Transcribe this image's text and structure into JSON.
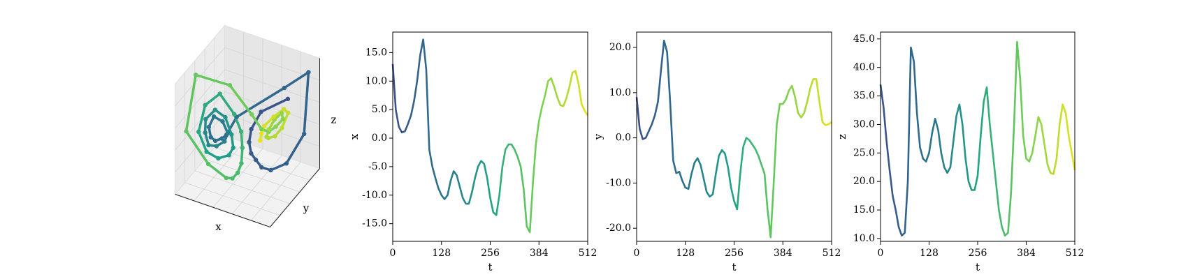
{
  "chart_data": [
    {
      "type": "line3d",
      "xlabel": "x",
      "ylabel": "y",
      "zlabel": "z",
      "colormap": [
        "#3b528b",
        "#2c728e",
        "#20a386",
        "#75d054",
        "#e7e419"
      ]
    },
    {
      "type": "line",
      "xlabel": "t",
      "ylabel": "x",
      "colormap": [
        "#3b528b",
        "#2c728e",
        "#20a386",
        "#75d054",
        "#e7e419"
      ],
      "x": [
        0,
        8,
        16,
        24,
        32,
        40,
        48,
        56,
        64,
        72,
        80,
        88,
        96,
        104,
        112,
        120,
        128,
        136,
        144,
        152,
        160,
        168,
        176,
        184,
        192,
        200,
        208,
        216,
        224,
        232,
        240,
        248,
        256,
        264,
        272,
        280,
        288,
        296,
        304,
        312,
        320,
        328,
        336,
        344,
        352,
        360,
        368,
        376,
        384,
        392,
        400,
        408,
        416,
        424,
        432,
        440,
        448,
        456,
        464,
        472,
        480,
        488,
        496,
        504,
        512
      ],
      "values": [
        13,
        5,
        2,
        1,
        1.2,
        2.5,
        4,
        6.5,
        10,
        14.5,
        17.3,
        12,
        -2,
        -5,
        -7,
        -8.8,
        -10,
        -10.7,
        -10,
        -7.5,
        -5.8,
        -6.5,
        -8.5,
        -10.5,
        -11.5,
        -11.5,
        -9.5,
        -7,
        -5,
        -4,
        -4.5,
        -7,
        -10.5,
        -13,
        -13.5,
        -10,
        -5,
        -2,
        -1.1,
        -1.1,
        -2,
        -3.3,
        -5,
        -9,
        -15.5,
        -16.5,
        -8,
        -1,
        3,
        5.5,
        7.5,
        10,
        10.5,
        9,
        7.2,
        5.8,
        5.6,
        7,
        9,
        11.5,
        11.8,
        9.5,
        6,
        4.8,
        4
      ],
      "xlim": [
        0,
        512
      ],
      "xticks": [
        0,
        128,
        256,
        384,
        512
      ],
      "ylim": [
        -18.1,
        18.6
      ],
      "yticks": [
        {
          "value": -15,
          "label": "-15.0"
        },
        {
          "value": -10,
          "label": "-10.0"
        },
        {
          "value": -5,
          "label": "-5.0"
        },
        {
          "value": 0,
          "label": "0.0"
        },
        {
          "value": 5,
          "label": "5.0"
        },
        {
          "value": 10,
          "label": "10.0"
        },
        {
          "value": 15,
          "label": "15.0"
        }
      ]
    },
    {
      "type": "line",
      "xlabel": "t",
      "ylabel": "y",
      "colormap": [
        "#3b528b",
        "#2c728e",
        "#20a386",
        "#75d054",
        "#e7e419"
      ],
      "x": [
        0,
        8,
        16,
        24,
        32,
        40,
        48,
        56,
        64,
        72,
        80,
        88,
        96,
        104,
        112,
        120,
        128,
        136,
        144,
        152,
        160,
        168,
        176,
        184,
        192,
        200,
        208,
        216,
        224,
        232,
        240,
        248,
        256,
        264,
        272,
        280,
        288,
        296,
        304,
        312,
        320,
        328,
        336,
        344,
        352,
        360,
        368,
        376,
        384,
        392,
        400,
        408,
        416,
        424,
        432,
        440,
        448,
        456,
        464,
        472,
        480,
        488,
        496,
        504,
        512
      ],
      "values": [
        9,
        2,
        -0.3,
        0,
        1.5,
        3,
        5,
        8,
        15,
        21.5,
        19,
        8,
        -5,
        -7.8,
        -7.5,
        -9.5,
        -11,
        -11.3,
        -8,
        -5.5,
        -4.5,
        -6,
        -9,
        -12,
        -13,
        -12.5,
        -8,
        -4,
        -2.7,
        -3.5,
        -6.5,
        -11,
        -14,
        -15.8,
        -8,
        -2,
        0,
        -0.5,
        -1.5,
        -2.5,
        -4,
        -6,
        -8,
        -16,
        -22,
        -10,
        3,
        7.5,
        7.5,
        8.5,
        10.5,
        11.5,
        9,
        5.5,
        4.5,
        5.5,
        8,
        11,
        13,
        13,
        8,
        3.5,
        2.8,
        3,
        3.5
      ],
      "xlim": [
        0,
        512
      ],
      "xticks": [
        0,
        128,
        256,
        384,
        512
      ],
      "ylim": [
        -22.9,
        23.4
      ],
      "yticks": [
        {
          "value": -20,
          "label": "-20.0"
        },
        {
          "value": -10,
          "label": "-10.0"
        },
        {
          "value": 0,
          "label": "0.0"
        },
        {
          "value": 10,
          "label": "10.0"
        },
        {
          "value": 20,
          "label": "20.0"
        }
      ]
    },
    {
      "type": "line",
      "xlabel": "t",
      "ylabel": "z",
      "colormap": [
        "#3b528b",
        "#2c728e",
        "#20a386",
        "#75d054",
        "#e7e419"
      ],
      "x": [
        0,
        8,
        16,
        24,
        32,
        40,
        48,
        56,
        64,
        72,
        80,
        88,
        96,
        104,
        112,
        120,
        128,
        136,
        144,
        152,
        160,
        168,
        176,
        184,
        192,
        200,
        208,
        216,
        224,
        232,
        240,
        248,
        256,
        264,
        272,
        280,
        288,
        296,
        304,
        312,
        320,
        328,
        336,
        344,
        352,
        360,
        368,
        376,
        384,
        392,
        400,
        408,
        416,
        424,
        432,
        440,
        448,
        456,
        464,
        472,
        480,
        488,
        496,
        504,
        512
      ],
      "values": [
        37,
        33,
        27,
        22,
        17.5,
        15,
        12,
        10.5,
        11,
        20,
        43.5,
        41,
        32,
        26,
        24,
        23.5,
        25,
        28.5,
        31,
        29,
        25,
        22.5,
        21.5,
        22.5,
        27,
        31.5,
        33.5,
        30,
        24,
        20,
        18.5,
        18.5,
        21,
        28,
        34,
        36.5,
        30,
        25,
        20,
        15,
        12,
        10.5,
        11,
        18,
        30,
        44.5,
        38,
        28,
        24,
        23.5,
        25,
        28,
        31.3,
        30,
        26.5,
        23,
        21.5,
        21.3,
        24,
        30,
        33.5,
        32,
        28,
        25,
        22
      ],
      "xlim": [
        0,
        512
      ],
      "xticks": [
        0,
        128,
        256,
        384,
        512
      ],
      "ylim": [
        9.5,
        46.2
      ],
      "yticks": [
        {
          "value": 10,
          "label": "10.0"
        },
        {
          "value": 15,
          "label": "15.0"
        },
        {
          "value": 20,
          "label": "20.0"
        },
        {
          "value": 25,
          "label": "25.0"
        },
        {
          "value": 30,
          "label": "30.0"
        },
        {
          "value": 35,
          "label": "35.0"
        },
        {
          "value": 40,
          "label": "40.0"
        },
        {
          "value": 45,
          "label": "45.0"
        }
      ]
    }
  ]
}
